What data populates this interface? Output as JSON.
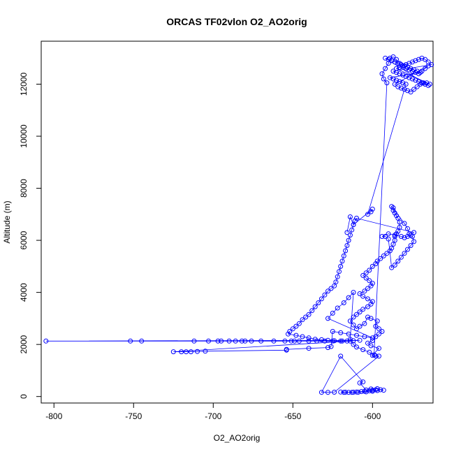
{
  "chart_data": {
    "type": "scatter",
    "title": "ORCAS TF02vlon O2_AO2orig",
    "xlabel": "O2_AO2orig",
    "ylabel": "Altitude (m)",
    "xlim": [
      -808,
      -562
    ],
    "ylim": [
      -250,
      13650
    ],
    "xticks": [
      -800,
      -750,
      -700,
      -650,
      -600
    ],
    "yticks": [
      0,
      2000,
      4000,
      6000,
      8000,
      10000,
      12000
    ],
    "grid": false,
    "legend": "none",
    "colors": {
      "series": "#0000ff",
      "axes": "#000000"
    },
    "series": [
      {
        "style": "points-and-lines",
        "points": [
          [
            -605,
            200
          ],
          [
            -600,
            240
          ],
          [
            -598,
            260
          ],
          [
            -602,
            220
          ],
          [
            -607,
            190
          ],
          [
            -610,
            170
          ],
          [
            -612,
            165
          ],
          [
            -615,
            160
          ],
          [
            -618,
            160
          ],
          [
            -620,
            170
          ],
          [
            -617,
            165
          ],
          [
            -613,
            160
          ],
          [
            -609,
            165
          ],
          [
            -604,
            180
          ],
          [
            -600,
            200
          ],
          [
            -597,
            230
          ],
          [
            -595,
            260
          ],
          [
            -593,
            240
          ],
          [
            -597,
            300
          ],
          [
            -601,
            290
          ],
          [
            -604,
            250
          ],
          [
            -608,
            520
          ],
          [
            -606,
            560
          ],
          [
            -620,
            1550
          ],
          [
            -632,
            160
          ],
          [
            -628,
            160
          ],
          [
            -624,
            165
          ],
          [
            -596,
            1550
          ],
          [
            -598,
            1560
          ],
          [
            -600,
            1580
          ],
          [
            -596,
            1850
          ],
          [
            -601,
            1950
          ],
          [
            -603,
            2050
          ],
          [
            -600,
            2150
          ],
          [
            -598,
            2300
          ],
          [
            -596,
            2400
          ],
          [
            -594,
            2500
          ],
          [
            -596,
            2600
          ],
          [
            -598,
            2700
          ],
          [
            -597,
            2900
          ],
          [
            -601,
            3000
          ],
          [
            -603,
            3050
          ],
          [
            -605,
            2800
          ],
          [
            -608,
            2700
          ],
          [
            -610,
            2600
          ],
          [
            -612,
            2750
          ],
          [
            -614,
            2900
          ],
          [
            -612,
            3050
          ],
          [
            -610,
            3150
          ],
          [
            -608,
            3250
          ],
          [
            -606,
            3350
          ],
          [
            -603,
            3450
          ],
          [
            -601,
            3550
          ],
          [
            -600,
            3650
          ],
          [
            -603,
            3750
          ],
          [
            -606,
            3850
          ],
          [
            -608,
            3950
          ],
          [
            -605,
            4050
          ],
          [
            -603,
            4150
          ],
          [
            -601,
            4250
          ],
          [
            -600,
            4350
          ],
          [
            -602,
            4450
          ],
          [
            -604,
            4550
          ],
          [
            -606,
            4650
          ],
          [
            -604,
            4750
          ],
          [
            -602,
            4850
          ],
          [
            -600,
            5000
          ],
          [
            -598,
            5100
          ],
          [
            -597,
            5200
          ],
          [
            -595,
            5300
          ],
          [
            -593,
            5400
          ],
          [
            -591,
            5500
          ],
          [
            -589,
            5600
          ],
          [
            -588,
            5700
          ],
          [
            -587,
            5850
          ],
          [
            -586,
            6000
          ],
          [
            -586,
            6150
          ],
          [
            -585,
            6250
          ],
          [
            -584,
            6350
          ],
          [
            -583,
            6500
          ],
          [
            -583,
            6700
          ],
          [
            -584,
            6850
          ],
          [
            -585,
            6950
          ],
          [
            -586,
            7050
          ],
          [
            -587,
            7150
          ],
          [
            -587,
            7250
          ],
          [
            -588,
            7300
          ],
          [
            -580,
            6650
          ],
          [
            -578,
            6450
          ],
          [
            -577,
            6250
          ],
          [
            -575,
            6150
          ],
          [
            -574,
            5950
          ],
          [
            -576,
            5800
          ],
          [
            -578,
            5650
          ],
          [
            -580,
            5500
          ],
          [
            -582,
            5350
          ],
          [
            -584,
            5200
          ],
          [
            -586,
            5050
          ],
          [
            -588,
            4950
          ],
          [
            -590,
            6050
          ],
          [
            -592,
            6150
          ],
          [
            -594,
            6150
          ],
          [
            -590,
            6250
          ],
          [
            -586,
            6200
          ],
          [
            -582,
            6150
          ],
          [
            -580,
            6100
          ],
          [
            -578,
            6150
          ],
          [
            -576,
            6200
          ],
          [
            -574,
            6300
          ],
          [
            -610,
            6850
          ],
          [
            -611,
            6750
          ],
          [
            -612,
            6600
          ],
          [
            -613,
            6400
          ],
          [
            -614,
            6200
          ],
          [
            -615,
            6000
          ],
          [
            -616,
            5800
          ],
          [
            -617,
            5600
          ],
          [
            -618,
            5400
          ],
          [
            -619,
            5200
          ],
          [
            -620,
            5000
          ],
          [
            -621,
            4800
          ],
          [
            -622,
            4600
          ],
          [
            -623,
            4400
          ],
          [
            -624,
            4250
          ],
          [
            -626,
            4150
          ],
          [
            -628,
            4050
          ],
          [
            -630,
            3900
          ],
          [
            -632,
            3750
          ],
          [
            -634,
            3600
          ],
          [
            -636,
            3450
          ],
          [
            -638,
            3300
          ],
          [
            -640,
            3150
          ],
          [
            -642,
            3050
          ],
          [
            -644,
            2950
          ],
          [
            -646,
            2800
          ],
          [
            -648,
            2700
          ],
          [
            -650,
            2600
          ],
          [
            -652,
            2500
          ],
          [
            -653,
            2400
          ],
          [
            -648,
            2350
          ],
          [
            -644,
            2300
          ],
          [
            -640,
            2250
          ],
          [
            -636,
            2200
          ],
          [
            -632,
            2180
          ],
          [
            -628,
            2160
          ],
          [
            -624,
            2140
          ],
          [
            -620,
            2130
          ],
          [
            -616,
            2130
          ],
          [
            -612,
            2140
          ],
          [
            -608,
            2160
          ],
          [
            -805,
            2130
          ],
          [
            -752,
            2130
          ],
          [
            -745,
            2130
          ],
          [
            -712,
            2130
          ],
          [
            -703,
            2130
          ],
          [
            -697,
            2130
          ],
          [
            -695,
            2130
          ],
          [
            -690,
            2130
          ],
          [
            -686,
            2130
          ],
          [
            -682,
            2130
          ],
          [
            -680,
            2130
          ],
          [
            -676,
            2130
          ],
          [
            -670,
            2130
          ],
          [
            -662,
            2130
          ],
          [
            -655,
            2130
          ],
          [
            -651,
            2130
          ],
          [
            -649,
            2130
          ],
          [
            -646,
            2130
          ],
          [
            -640,
            2130
          ],
          [
            -635,
            2130
          ],
          [
            -630,
            2130
          ],
          [
            -625,
            2130
          ],
          [
            -619,
            2130
          ],
          [
            -614,
            2130
          ],
          [
            -725,
            1720
          ],
          [
            -720,
            1720
          ],
          [
            -717,
            1720
          ],
          [
            -714,
            1720
          ],
          [
            -710,
            1730
          ],
          [
            -705,
            1740
          ],
          [
            -654,
            1780
          ],
          [
            -654,
            1810
          ],
          [
            -640,
            1850
          ],
          [
            -628,
            1880
          ],
          [
            -626,
            1920
          ],
          [
            -625,
            2500
          ],
          [
            -620,
            2450
          ],
          [
            -615,
            2400
          ],
          [
            -610,
            2350
          ],
          [
            -605,
            2300
          ],
          [
            -600,
            2250
          ],
          [
            -628,
            3000
          ],
          [
            -625,
            3200
          ],
          [
            -622,
            3400
          ],
          [
            -618,
            3600
          ],
          [
            -615,
            3800
          ],
          [
            -612,
            4000
          ],
          [
            -614,
            2200
          ],
          [
            -612,
            2000
          ],
          [
            -610,
            1900
          ],
          [
            -606,
            1800
          ],
          [
            -602,
            1700
          ],
          [
            -599,
            1600
          ],
          [
            -591,
            12050
          ],
          [
            -593,
            12200
          ],
          [
            -594,
            12400
          ],
          [
            -592,
            12600
          ],
          [
            -590,
            12800
          ],
          [
            -589,
            13000
          ],
          [
            -587,
            13050
          ],
          [
            -585,
            12950
          ],
          [
            -583,
            12800
          ],
          [
            -581,
            12700
          ],
          [
            -579,
            12600
          ],
          [
            -577,
            12550
          ],
          [
            -575,
            12500
          ],
          [
            -573,
            12450
          ],
          [
            -571,
            12400
          ],
          [
            -569,
            12500
          ],
          [
            -567,
            12600
          ],
          [
            -565,
            12700
          ],
          [
            -586,
            12000
          ],
          [
            -584,
            11900
          ],
          [
            -582,
            11850
          ],
          [
            -580,
            11800
          ],
          [
            -578,
            11750
          ],
          [
            -576,
            11700
          ],
          [
            -574,
            11800
          ],
          [
            -572,
            11900
          ],
          [
            -570,
            12000
          ],
          [
            -568,
            12050
          ],
          [
            -566,
            12050
          ],
          [
            -564,
            12000
          ],
          [
            -585,
            12600
          ],
          [
            -583,
            12650
          ],
          [
            -581,
            12700
          ],
          [
            -579,
            12750
          ],
          [
            -577,
            12800
          ],
          [
            -575,
            12850
          ],
          [
            -573,
            12900
          ],
          [
            -571,
            12950
          ],
          [
            -569,
            13000
          ],
          [
            -567,
            12950
          ],
          [
            -565,
            12850
          ],
          [
            -563,
            12750
          ],
          [
            -587,
            12500
          ],
          [
            -585,
            12450
          ],
          [
            -583,
            12400
          ],
          [
            -581,
            12350
          ],
          [
            -579,
            12300
          ],
          [
            -577,
            12250
          ],
          [
            -575,
            12200
          ],
          [
            -573,
            12150
          ],
          [
            -571,
            12100
          ],
          [
            -569,
            12050
          ],
          [
            -567,
            12000
          ],
          [
            -565,
            11950
          ],
          [
            -592,
            13000
          ],
          [
            -590,
            12950
          ],
          [
            -588,
            12900
          ],
          [
            -586,
            12850
          ],
          [
            -584,
            12800
          ],
          [
            -582,
            12750
          ],
          [
            -580,
            12700
          ],
          [
            -578,
            12650
          ],
          [
            -576,
            12600
          ],
          [
            -574,
            12550
          ],
          [
            -572,
            12500
          ],
          [
            -570,
            12450
          ],
          [
            -589,
            12250
          ],
          [
            -587,
            12200
          ],
          [
            -585,
            12150
          ],
          [
            -583,
            12100
          ],
          [
            -581,
            12050
          ],
          [
            -579,
            12000
          ],
          [
            -603,
            7000
          ],
          [
            -601,
            7100
          ],
          [
            -600,
            7200
          ],
          [
            -612,
            6600
          ],
          [
            -614,
            6900
          ],
          [
            -616,
            6300
          ]
        ]
      }
    ]
  }
}
